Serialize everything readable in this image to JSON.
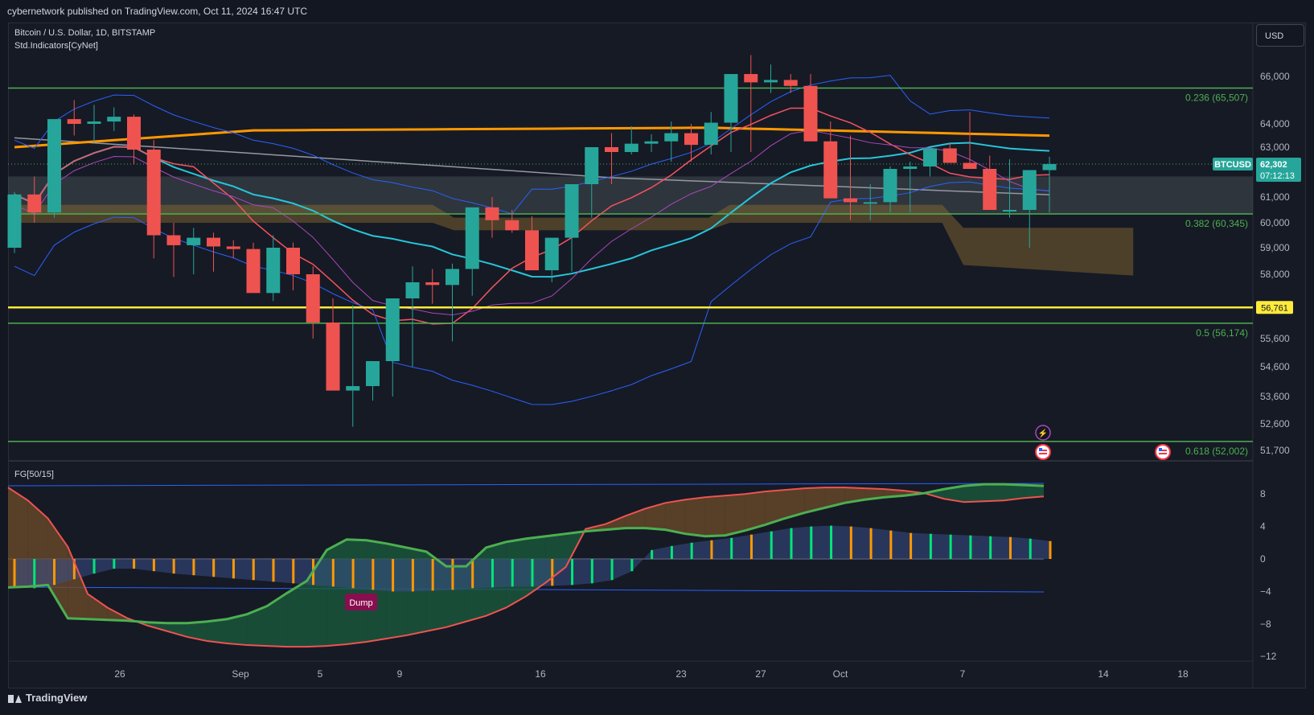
{
  "header": {
    "published": "cybernetwork published on TradingView.com, Oct 11, 2024 16:47 UTC"
  },
  "legend": {
    "symbol": "Bitcoin / U.S. Dollar, 1D, BITSTAMP",
    "indicator": "Std.Indicators[CyNet]"
  },
  "fg_legend": "FG[50/15]",
  "currency": "USD",
  "footer": {
    "brand": "TradingView"
  },
  "colors": {
    "up": "#26a69a",
    "down": "#ef5350",
    "fib": "#4caf50",
    "support": "#ffeb3b",
    "bollinger": "#2962ff",
    "ma_orange": "#ff9800",
    "ma_cyan": "#26c6da",
    "ma_gray": "#9598a1",
    "ma_red": "#f7525f",
    "ma_purple": "#ab47bc"
  },
  "chart_data": [
    {
      "type": "candlestick",
      "title": "Bitcoin / U.S. Dollar, 1D, BITSTAMP",
      "x": [
        "Aug 20",
        "Aug 21",
        "Aug 22",
        "Aug 23",
        "Aug 24",
        "Aug 25",
        "Aug 26",
        "Aug 27",
        "Aug 28",
        "Aug 29",
        "Aug 30",
        "Aug 31",
        "Sep 1",
        "Sep 2",
        "Sep 3",
        "Sep 4",
        "Sep 5",
        "Sep 6",
        "Sep 7",
        "Sep 8",
        "Sep 9",
        "Sep 10",
        "Sep 11",
        "Sep 12",
        "Sep 13",
        "Sep 14",
        "Sep 15",
        "Sep 16",
        "Sep 17",
        "Sep 18",
        "Sep 19",
        "Sep 20",
        "Sep 21",
        "Sep 22",
        "Sep 23",
        "Sep 24",
        "Sep 25",
        "Sep 26",
        "Sep 27",
        "Sep 28",
        "Sep 29",
        "Sep 30",
        "Oct 1",
        "Oct 2",
        "Oct 3",
        "Oct 4",
        "Oct 5",
        "Oct 6",
        "Oct 7",
        "Oct 8",
        "Oct 9",
        "Oct 10",
        "Oct 11"
      ],
      "open": [
        59000,
        61100,
        60400,
        64200,
        64000,
        64100,
        64300,
        62900,
        59500,
        59100,
        59400,
        59050,
        58950,
        57300,
        59000,
        58000,
        56200,
        53800,
        53950,
        54800,
        57100,
        57700,
        57600,
        58200,
        60600,
        60100,
        59700,
        58150,
        59400,
        61500,
        63000,
        62800,
        63150,
        63250,
        63600,
        63100,
        64050,
        66100,
        65750,
        65850,
        65600,
        63250,
        60950,
        60800,
        60800,
        62100,
        62200,
        62950,
        62350,
        62100,
        60500,
        60500,
        62050
      ],
      "high": [
        61200,
        61800,
        62500,
        65000,
        64800,
        64700,
        64400,
        63300,
        60000,
        59800,
        59600,
        59300,
        59200,
        59500,
        59200,
        58300,
        57100,
        56850,
        54700,
        55200,
        58300,
        58200,
        58400,
        60500,
        61000,
        60500,
        60250,
        59100,
        61300,
        62500,
        63600,
        63900,
        63550,
        64100,
        64000,
        64500,
        64700,
        66900,
        66500,
        66100,
        66100,
        64100,
        63500,
        61500,
        62200,
        62400,
        62800,
        63200,
        64500,
        62650,
        62500,
        61500,
        62600
      ],
      "low": [
        58800,
        60000,
        60200,
        63500,
        63200,
        63700,
        62300,
        58600,
        57900,
        58000,
        58100,
        58600,
        58000,
        57000,
        57400,
        55600,
        54900,
        52500,
        53450,
        53600,
        54600,
        56900,
        55500,
        57200,
        59400,
        59600,
        59200,
        57700,
        58100,
        60200,
        61500,
        62700,
        62800,
        62400,
        62400,
        62700,
        62800,
        62800,
        65300,
        65300,
        65400,
        62900,
        60100,
        60100,
        60400,
        60400,
        61800,
        62600,
        62200,
        61700,
        60200,
        59000,
        60400
      ]
    },
    {
      "type": "histogram",
      "title": "FG[50/15]",
      "x": [
        "Aug 20",
        "Aug 21",
        "Aug 22",
        "Aug 23",
        "Aug 24",
        "Aug 25",
        "Aug 26",
        "Aug 27",
        "Aug 28",
        "Aug 29",
        "Aug 30",
        "Aug 31",
        "Sep 1",
        "Sep 2",
        "Sep 3",
        "Sep 4",
        "Sep 5",
        "Sep 6",
        "Sep 7",
        "Sep 8",
        "Sep 9",
        "Sep 10",
        "Sep 11",
        "Sep 12",
        "Sep 13",
        "Sep 14",
        "Sep 15",
        "Sep 16",
        "Sep 17",
        "Sep 18",
        "Sep 19",
        "Sep 20",
        "Sep 21",
        "Sep 22",
        "Sep 23",
        "Sep 24",
        "Sep 25",
        "Sep 26",
        "Sep 27",
        "Sep 28",
        "Sep 29",
        "Sep 30",
        "Oct 1",
        "Oct 2",
        "Oct 3",
        "Oct 4",
        "Oct 5",
        "Oct 6",
        "Oct 7",
        "Oct 8",
        "Oct 9",
        "Oct 10",
        "Oct 11"
      ],
      "values": [
        -3.5,
        -3.6,
        -3.2,
        -2.5,
        -1.8,
        -1.2,
        -1.2,
        -1.5,
        -1.8,
        -2,
        -2.2,
        -2.4,
        -2.6,
        -2.8,
        -3,
        -3.2,
        -3.4,
        -3.6,
        -3.8,
        -4,
        -4,
        -3.9,
        -3.8,
        -3.6,
        -3.5,
        -3.4,
        -3.4,
        -3.3,
        -3.2,
        -3,
        -2.6,
        -1.5,
        1.1,
        1.6,
        2,
        2.3,
        2.6,
        3,
        3.4,
        3.8,
        4,
        4.1,
        4,
        3.8,
        3.5,
        3.2,
        3.1,
        3,
        2.9,
        2.8,
        2.7,
        2.5,
        2.2
      ],
      "bar_colors": [
        "#ff9800",
        "#00e676",
        "#ff9800",
        "#ff9800",
        "#00e676",
        "#00e676",
        "#ff9800",
        "#ff9800",
        "#ff9800",
        "#ff9800",
        "#ff9800",
        "#ff9800",
        "#ff9800",
        "#ff9800",
        "#ff9800",
        "#ff9800",
        "#ff9800",
        "#ff9800",
        "#ff9800",
        "#ff9800",
        "#ff9800",
        "#ff9800",
        "#ff9800",
        "#ff9800",
        "#00e676",
        "#00e676",
        "#00e676",
        "#ff9800",
        "#00e676",
        "#00e676",
        "#00e676",
        "#00e676",
        "#00e676",
        "#00e676",
        "#00e676",
        "#ff9800",
        "#00e676",
        "#ff9800",
        "#00e676",
        "#00e676",
        "#00e676",
        "#00e676",
        "#ff9800",
        "#ff9800",
        "#ff9800",
        "#ff9800",
        "#00e676",
        "#00e676",
        "#00e676",
        "#00e676",
        "#ff9800",
        "#00e676",
        "#ff9800"
      ],
      "green_line": [
        -3.5,
        -3.4,
        -3.2,
        -7.3,
        -7.4,
        -7.5,
        -7.6,
        -7.8,
        -7.9,
        -7.9,
        -7.7,
        -7.4,
        -6.8,
        -5.8,
        -4.2,
        -2.7,
        1.1,
        2.4,
        2.3,
        1.9,
        1.4,
        0.9,
        -0.9,
        -0.9,
        1.4,
        2.1,
        2.5,
        2.8,
        3.1,
        3.4,
        3.6,
        3.8,
        3.8,
        3.6,
        3.1,
        2.8,
        2.9,
        3.5,
        4.2,
        5,
        5.7,
        6.3,
        6.9,
        7.3,
        7.6,
        7.8,
        8.1,
        8.6,
        9,
        9.2,
        9.2,
        9.1,
        9
      ],
      "red_line": [
        8.8,
        7.2,
        5,
        1.5,
        -4.3,
        -6,
        -7.3,
        -8.2,
        -8.9,
        -9.6,
        -10.1,
        -10.4,
        -10.6,
        -10.7,
        -10.8,
        -10.8,
        -10.7,
        -10.5,
        -10.2,
        -9.8,
        -9.4,
        -8.9,
        -8.4,
        -7.7,
        -7,
        -6,
        -4.6,
        -2.9,
        -1,
        3.7,
        4.3,
        5.3,
        6.2,
        6.9,
        7.3,
        7.6,
        7.8,
        8,
        8.3,
        8.5,
        8.7,
        8.8,
        8.8,
        8.7,
        8.6,
        8.4,
        8.1,
        7.4,
        7,
        7.1,
        7.2,
        7.5,
        7.7
      ],
      "labels": [
        "Dump"
      ]
    }
  ],
  "axis": {
    "price_ticks": [
      "66,000",
      "64,000",
      "63,000",
      "62,000",
      "61,000",
      "60,000",
      "59,000",
      "58,000",
      "55,600",
      "54,600",
      "53,600",
      "52,600",
      "51,700"
    ],
    "fg_ticks": [
      "8",
      "4",
      "0",
      "−4",
      "−8",
      "−12"
    ],
    "date_ticks": [
      "26",
      "Sep",
      "5",
      "9",
      "16",
      "23",
      "27",
      "Oct",
      "7",
      "14",
      "18"
    ]
  },
  "levels": [
    {
      "label": "0.236 (65,507)",
      "value": 65507
    },
    {
      "label": "0.382 (60,345)",
      "value": 60345
    },
    {
      "label": "0.5 (56,174)",
      "value": 56174
    },
    {
      "label": "0.618 (52,002)",
      "value": 52002
    }
  ],
  "support_level": {
    "label": "56,761",
    "value": 56761
  },
  "price_tag": {
    "symbol": "BTCUSD",
    "price": "62,302",
    "countdown": "07:12:13"
  }
}
